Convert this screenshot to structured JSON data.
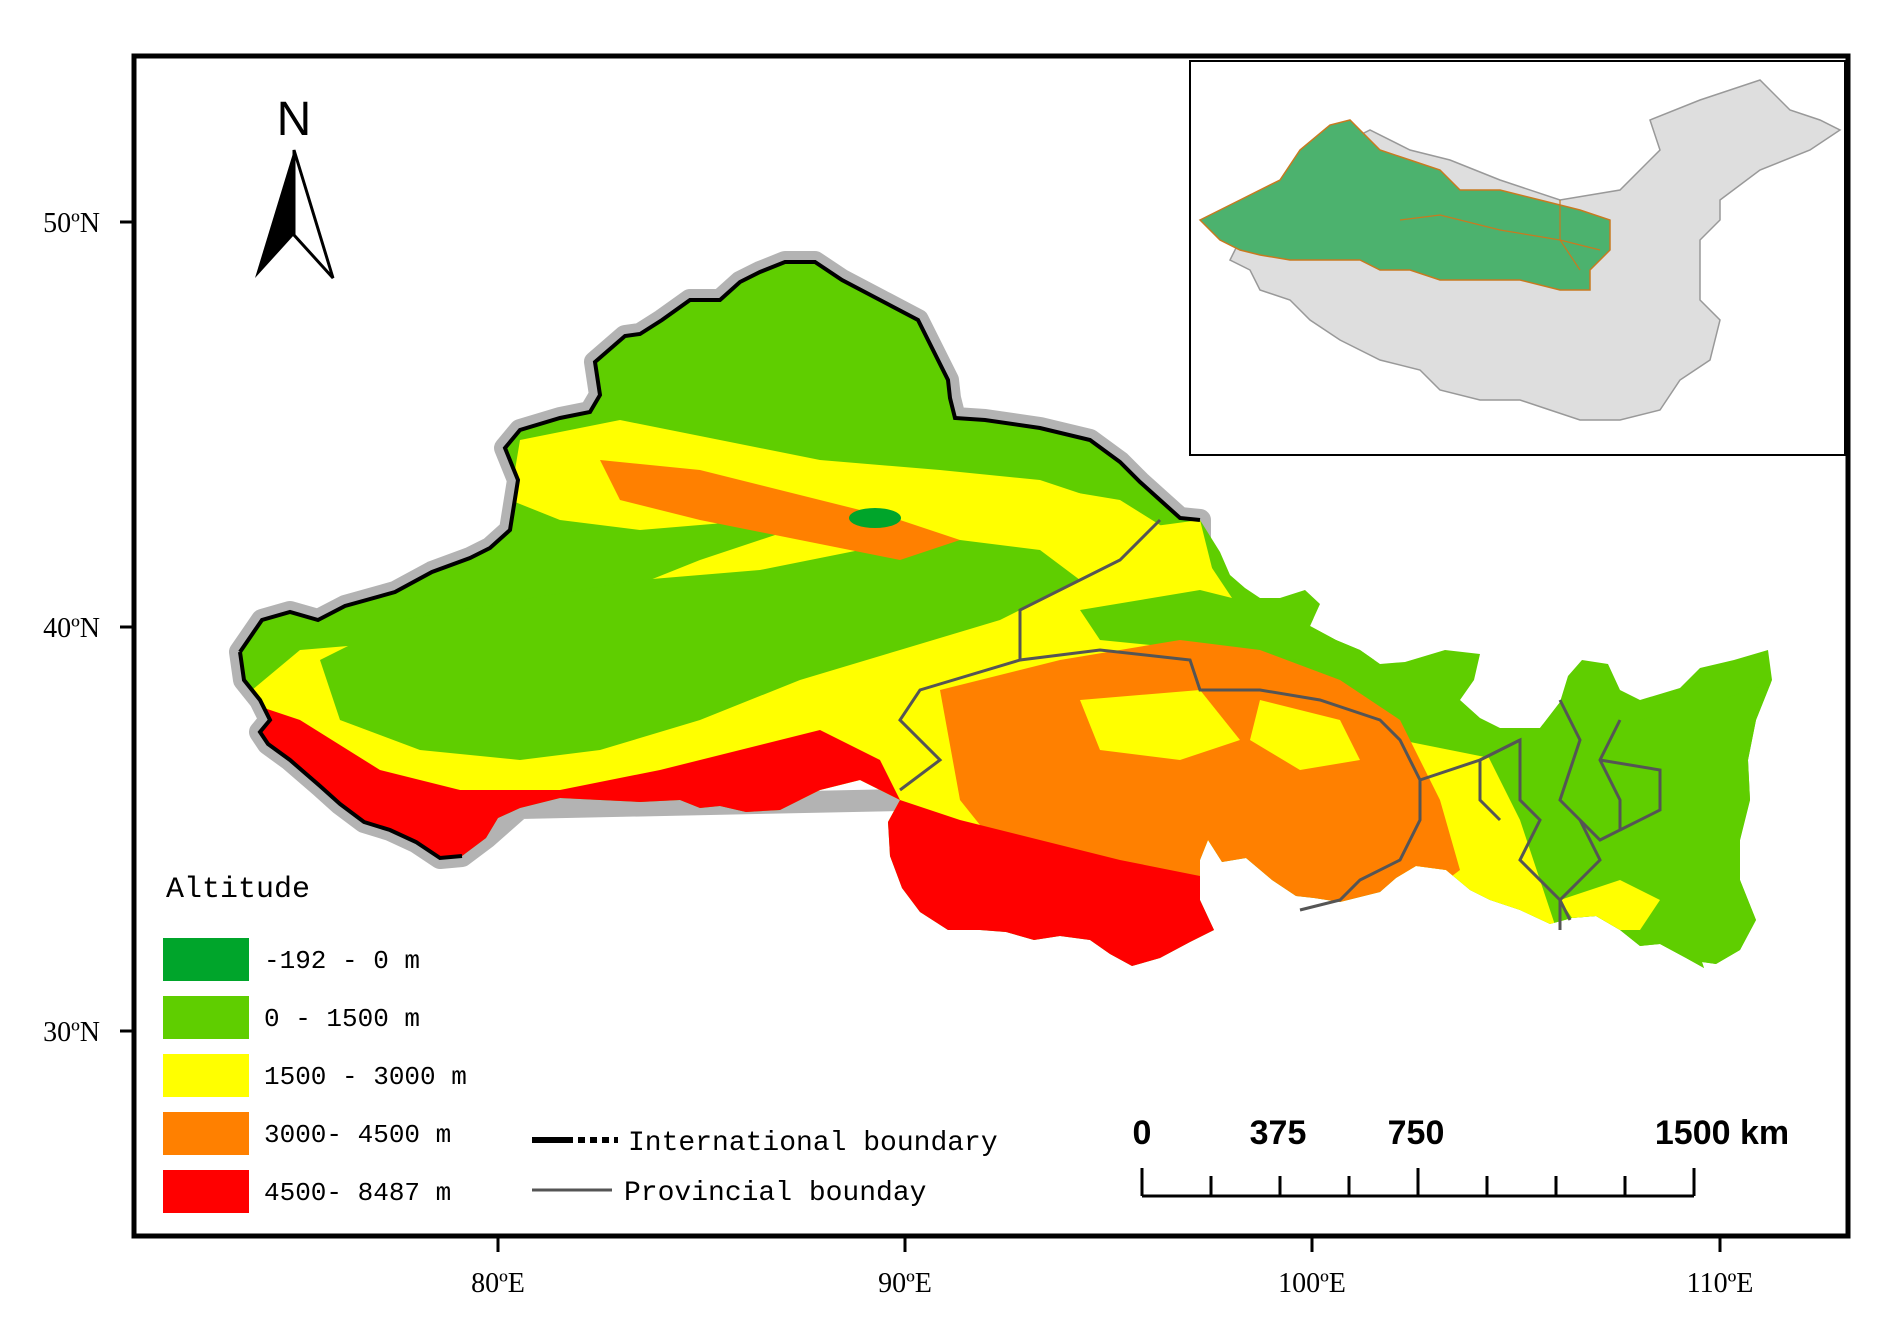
{
  "north_arrow": {
    "label": "N"
  },
  "latitude_labels": [
    "50ºN",
    "40ºN",
    "30ºN"
  ],
  "longitude_labels": [
    "80ºE",
    "90ºE",
    "100ºE",
    "110ºE"
  ],
  "legend": {
    "title": "Altitude",
    "classes": [
      {
        "label": "-192 - 0 m",
        "color": "#00a52b"
      },
      {
        "label": "0 - 1500 m",
        "color": "#5fce00"
      },
      {
        "label": "1500 - 3000 m",
        "color": "#ffff00"
      },
      {
        "label": "3000- 4500 m",
        "color": "#ff8000"
      },
      {
        "label": "4500- 8487 m",
        "color": "#ff0000"
      }
    ]
  },
  "boundary_legend": {
    "international": "International boundary",
    "provincial": "Provincial bounday"
  },
  "scale_bar": {
    "labels": [
      "0",
      "375",
      "750",
      "1500 km"
    ]
  },
  "colors": {
    "frame": "#000000",
    "inset_highlight": "#4cb26e",
    "inset_china": "#dedede",
    "buffer_gray": "#b3b3b3",
    "province_line": "#555555"
  }
}
